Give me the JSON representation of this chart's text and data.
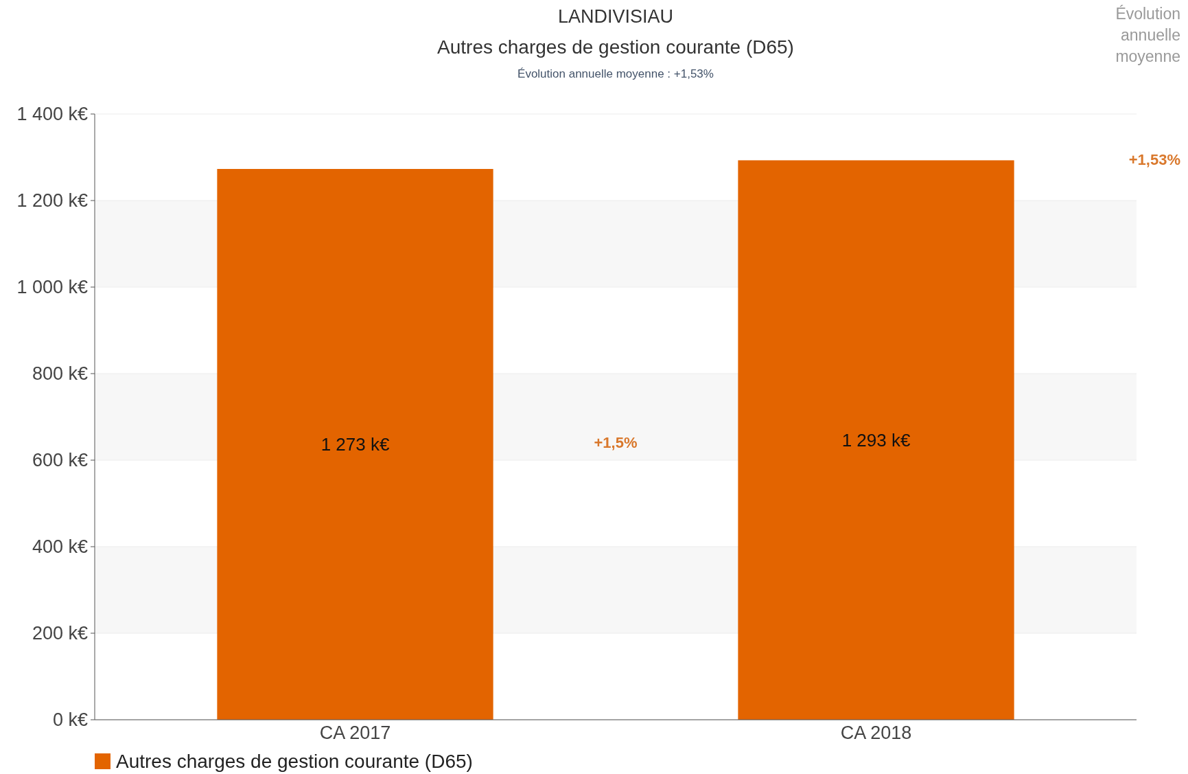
{
  "chart_data": {
    "type": "bar",
    "title": "LANDIVISIAU",
    "subtitle": "Autres charges de gestion courante (D65)",
    "annotations": [
      "Évolution annuelle moyenne : +1,53%",
      "+1,5%",
      "Évolution annuelle moyenne",
      "+1,53%"
    ],
    "categories": [
      "CA 2017",
      "CA 2018"
    ],
    "series": [
      {
        "name": "Autres charges de gestion courante (D65)",
        "color": "#e36400",
        "values": [
          1273,
          1293
        ],
        "value_labels": [
          "1 273 k€",
          "1 293 k€"
        ]
      }
    ],
    "ylim": [
      0,
      1400
    ],
    "yticks": [
      {
        "value": 0,
        "label": "0 k€"
      },
      {
        "value": 200,
        "label": "200 k€"
      },
      {
        "value": 400,
        "label": "400 k€"
      },
      {
        "value": 600,
        "label": "600 k€"
      },
      {
        "value": 800,
        "label": "800 k€"
      },
      {
        "value": 1000,
        "label": "1 000 k€"
      },
      {
        "value": 1200,
        "label": "1 200 k€"
      },
      {
        "value": 1400,
        "label": "1 400 k€"
      }
    ],
    "grid": "y",
    "legend": "bottom left"
  }
}
